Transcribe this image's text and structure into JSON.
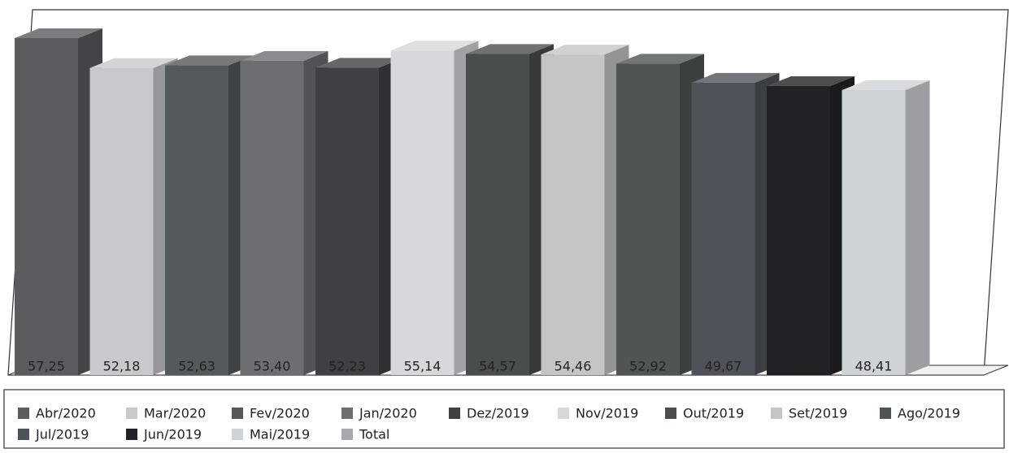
{
  "chart_data": {
    "type": "bar3d",
    "series": [
      {
        "name": "Abr/2020",
        "color": "#5b5b60",
        "values": [
          57.25
        ],
        "value_labels": [
          "57,25"
        ]
      },
      {
        "name": "Mar/2020",
        "color": "#c9c9cd",
        "values": [
          52.18
        ],
        "value_labels": [
          "52,18"
        ]
      },
      {
        "name": "Fev/2020",
        "color": "#55595b",
        "values": [
          52.63
        ],
        "value_labels": [
          "52,63"
        ]
      },
      {
        "name": "Jan/2020",
        "color": "#6c6e72",
        "values": [
          53.4
        ],
        "value_labels": [
          "53,40"
        ]
      },
      {
        "name": "Dez/2019",
        "color": "#3f4043",
        "values": [
          52.23
        ],
        "value_labels": [
          "52,23"
        ]
      },
      {
        "name": "Nov/2019",
        "color": "#d8d8dc",
        "values": [
          55.14
        ],
        "value_labels": [
          "55,14"
        ]
      },
      {
        "name": "Out/2019",
        "color": "#4a4d4d",
        "values": [
          54.57
        ],
        "value_labels": [
          "54,57"
        ]
      },
      {
        "name": "Set/2019",
        "color": "#c4c6c6",
        "values": [
          54.46
        ],
        "value_labels": [
          "54,46"
        ]
      },
      {
        "name": "Ago/2019",
        "color": "#505455",
        "values": [
          52.92
        ],
        "value_labels": [
          "52,92"
        ]
      },
      {
        "name": "Jul/2019",
        "color": "#4f5259",
        "values": [
          49.67
        ],
        "value_labels": [
          "49,67"
        ]
      },
      {
        "name": "Jun/2019",
        "color": "#222226",
        "values": [
          49.1
        ],
        "value_labels": [
          "49,10"
        ]
      },
      {
        "name": "Mai/2019",
        "color": "#d0d3d6",
        "values": [
          48.41
        ],
        "value_labels": [
          "48,41"
        ]
      },
      {
        "name": "Total",
        "color": "#a9a9ad",
        "values": [
          null
        ]
      }
    ]
  }
}
